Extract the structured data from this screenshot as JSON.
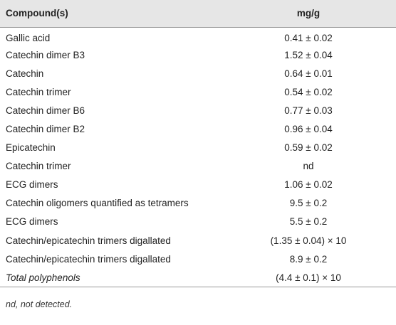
{
  "table": {
    "header": [
      "Compound(s)",
      "mg/g"
    ],
    "rows": [
      [
        "Gallic acid",
        "0.41 ± 0.02"
      ],
      [
        "Catechin dimer B3",
        "1.52 ± 0.04"
      ],
      [
        "Catechin",
        "0.64 ± 0.01"
      ],
      [
        "Catechin trimer",
        "0.54 ± 0.02"
      ],
      [
        "Catechin dimer B6",
        "0.77 ± 0.03"
      ],
      [
        "Catechin dimer B2",
        "0.96 ± 0.04"
      ],
      [
        "Epicatechin",
        "0.59 ± 0.02"
      ],
      [
        "Catechin trimer",
        "nd"
      ],
      [
        "ECG dimers",
        "1.06 ± 0.02"
      ],
      [
        "Catechin oligomers quantified as tetramers",
        "9.5 ± 0.2"
      ],
      [
        "ECG dimers",
        "5.5 ± 0.2"
      ],
      [
        "Catechin/epicatechin trimers digallated",
        "(1.35 ± 0.04) × 10"
      ],
      [
        "Catechin/epicatechin trimers digallated",
        "8.9 ± 0.2"
      ],
      [
        "Total polyphenols",
        "(4.4 ± 0.1) × 10"
      ]
    ]
  },
  "footnote": "nd, not detected."
}
